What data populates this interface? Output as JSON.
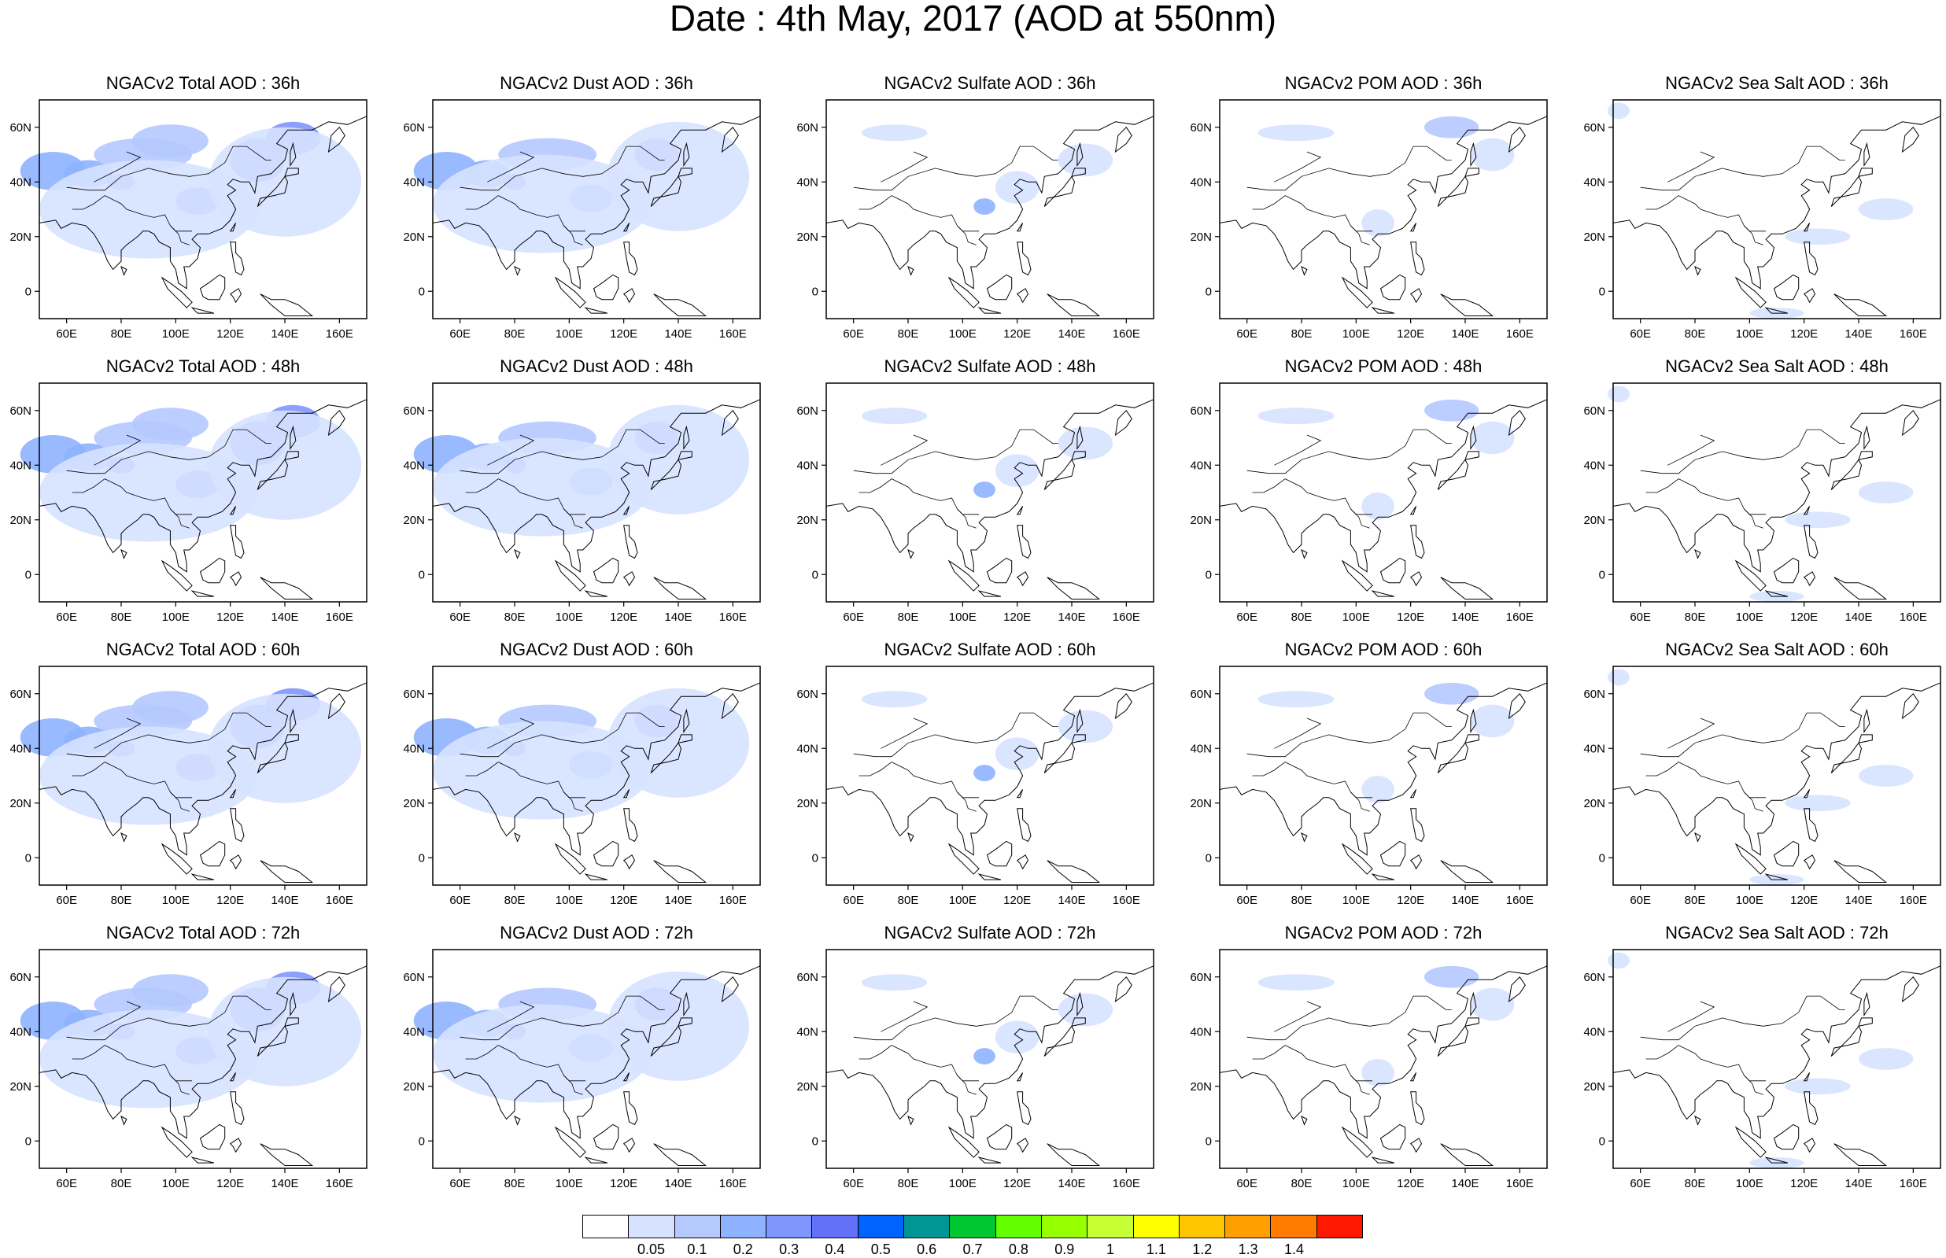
{
  "title": "Date : 4th May, 2017 (AOD at 550nm)",
  "lat_labels": [
    "60N",
    "40N",
    "20N",
    "0"
  ],
  "lon_labels": [
    "60E",
    "80E",
    "100E",
    "120E",
    "140E",
    "160E"
  ],
  "rows": [
    {
      "panels": [
        {
          "title": "NGACv2 Total AOD : 36h",
          "species": "total"
        },
        {
          "title": "NGACv2 Dust AOD : 36h",
          "species": "dust"
        },
        {
          "title": "NGACv2 Sulfate AOD : 36h",
          "species": "sulfate"
        },
        {
          "title": "NGACv2 POM AOD : 36h",
          "species": "pom"
        },
        {
          "title": "NGACv2 Sea Salt AOD : 36h",
          "species": "seasalt"
        }
      ]
    },
    {
      "panels": [
        {
          "title": "NGACv2 Total AOD : 48h",
          "species": "total"
        },
        {
          "title": "NGACv2 Dust AOD : 48h",
          "species": "dust"
        },
        {
          "title": "NGACv2 Sulfate AOD : 48h",
          "species": "sulfate"
        },
        {
          "title": "NGACv2 POM AOD : 48h",
          "species": "pom"
        },
        {
          "title": "NGACv2 Sea Salt AOD : 48h",
          "species": "seasalt"
        }
      ]
    },
    {
      "panels": [
        {
          "title": "NGACv2 Total AOD : 60h",
          "species": "total"
        },
        {
          "title": "NGACv2 Dust AOD : 60h",
          "species": "dust"
        },
        {
          "title": "NGACv2 Sulfate AOD : 60h",
          "species": "sulfate"
        },
        {
          "title": "NGACv2 POM AOD : 60h",
          "species": "pom"
        },
        {
          "title": "NGACv2 Sea Salt AOD : 60h",
          "species": "seasalt"
        }
      ]
    },
    {
      "panels": [
        {
          "title": "NGACv2 Total AOD : 72h",
          "species": "total"
        },
        {
          "title": "NGACv2 Dust AOD : 72h",
          "species": "dust"
        },
        {
          "title": "NGACv2 Sulfate AOD : 72h",
          "species": "sulfate"
        },
        {
          "title": "NGACv2 POM AOD : 72h",
          "species": "pom"
        },
        {
          "title": "NGACv2 Sea Salt  AOD : 72h",
          "species": "seasalt"
        }
      ]
    }
  ],
  "colorbar": {
    "colors": [
      "#ffffff",
      "#d6e2ff",
      "#b5c9ff",
      "#8eb2ff",
      "#7f96ff",
      "#6370f8",
      "#0063ff",
      "#009696",
      "#00c633",
      "#63ff00",
      "#96ff00",
      "#c6ff33",
      "#ffff00",
      "#ffc600",
      "#ffa000",
      "#ff7c00",
      "#ff1900"
    ],
    "labels": [
      "0.05",
      "0.1",
      "0.2",
      "0.3",
      "0.4",
      "0.5",
      "0.6",
      "0.7",
      "0.8",
      "0.9",
      "1",
      "1.1",
      "1.2",
      "1.3",
      "1.4"
    ]
  },
  "colors": {
    "coastline": "#000000",
    "light": "#d6e2ff",
    "medium": "#b5c9ff",
    "mid": "#8eb2ff",
    "strong": "#7f96ff",
    "deep": "#6370f8"
  }
}
